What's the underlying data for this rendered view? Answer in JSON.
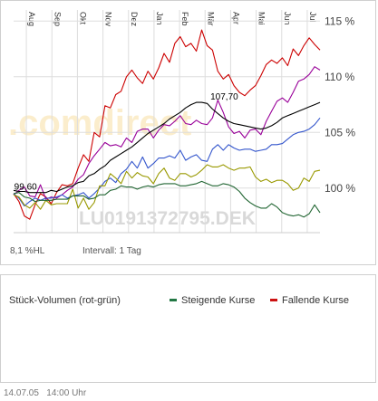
{
  "chart_data": {
    "type": "line",
    "isin_watermark": "LU0191372795.DEK",
    "brand_watermark": ".comdirect",
    "months": [
      "Aug",
      "Sep",
      "Okt",
      "Nov",
      "Dez",
      "Jan",
      "Feb",
      "Mär",
      "Apr",
      "Mai",
      "Jun",
      "Jul"
    ],
    "y_ticks": [
      "115 %",
      "110 %",
      "105 %",
      "100 %"
    ],
    "y_tick_values": [
      115,
      110,
      105,
      100
    ],
    "ylim": [
      96,
      116
    ],
    "hl_label": "8,1 %HL",
    "interval_label": "Intervall: 1 Tag",
    "annotations": [
      {
        "text": "107,70",
        "x": 8.2,
        "y": 107.7
      },
      {
        "text": "99,60",
        "x": 0.9,
        "y": 99.6
      }
    ],
    "series": [
      {
        "color": "#cc0000",
        "x": [
          0,
          0.2,
          0.4,
          0.6,
          0.8,
          1,
          1.2,
          1.4,
          1.6,
          1.8,
          2,
          2.2,
          2.4,
          2.6,
          2.8,
          3,
          3.2,
          3.4,
          3.6,
          3.8,
          4,
          4.2,
          4.4,
          4.6,
          4.8,
          5,
          5.2,
          5.4,
          5.6,
          5.8,
          6,
          6.2,
          6.4,
          6.6,
          6.8,
          7,
          7.2,
          7.4,
          7.6,
          7.8,
          8,
          8.2,
          8.4,
          8.6,
          8.8,
          9,
          9.2,
          9.4,
          9.6,
          9.8,
          10,
          10.2,
          10.4,
          10.6,
          10.8,
          11,
          11.2,
          11.4
        ],
        "values": [
          99.5,
          98.8,
          97.5,
          97.2,
          98.5,
          99.5,
          99.2,
          98.6,
          99.6,
          100.3,
          100.2,
          100.4,
          101.8,
          103,
          102.4,
          105,
          104.6,
          107.4,
          107.2,
          108.4,
          108.7,
          110,
          110.6,
          109.9,
          109.4,
          110.5,
          109.8,
          110.8,
          112.1,
          111.3,
          113,
          113.6,
          112.7,
          113,
          112.3,
          114.2,
          112.8,
          112.4,
          110.5,
          109.8,
          110.2,
          109.2,
          108.6,
          108.3,
          108.8,
          109.2,
          110.1,
          111.1,
          111.5,
          111.2,
          111.7,
          111,
          112.5,
          111.9,
          112.8,
          113.5,
          112.9,
          112.4
        ]
      },
      {
        "color": "#990099",
        "x": [
          0,
          0.2,
          0.4,
          0.6,
          0.8,
          1,
          1.2,
          1.4,
          1.6,
          1.8,
          2,
          2.2,
          2.4,
          2.6,
          2.8,
          3,
          3.2,
          3.4,
          3.6,
          3.8,
          4,
          4.2,
          4.4,
          4.6,
          4.8,
          5,
          5.2,
          5.4,
          5.6,
          5.8,
          6,
          6.2,
          6.4,
          6.6,
          6.8,
          7,
          7.2,
          7.4,
          7.6,
          7.8,
          8,
          8.2,
          8.4,
          8.6,
          8.8,
          9,
          9.2,
          9.4,
          9.6,
          9.8,
          10,
          10.2,
          10.4,
          10.6,
          10.8,
          11,
          11.2,
          11.4
        ],
        "values": [
          99.4,
          99.8,
          100.1,
          99.3,
          99.2,
          100.3,
          99,
          99.2,
          99.1,
          99.4,
          99.8,
          100.1,
          100.8,
          101.2,
          102.2,
          102.9,
          103.5,
          104.1,
          103.8,
          103.9,
          103.7,
          104.5,
          104.1,
          105.1,
          105.3,
          105.3,
          104.5,
          105.2,
          105.7,
          105.6,
          106,
          106.5,
          105.8,
          105.7,
          106.1,
          105.8,
          105.7,
          106.3,
          107.9,
          106.8,
          105.5,
          104.9,
          105.1,
          104.5,
          105.2,
          105.3,
          104.8,
          106,
          106.9,
          107.8,
          108.1,
          107.7,
          108.6,
          109.6,
          109.8,
          110.2,
          110.9,
          110.6
        ]
      },
      {
        "color": "#000000",
        "x": [
          0,
          0.2,
          0.4,
          0.6,
          0.8,
          1,
          1.2,
          1.4,
          1.6,
          1.8,
          2,
          2.2,
          2.4,
          2.6,
          2.8,
          3,
          3.2,
          3.4,
          3.6,
          3.8,
          4,
          4.2,
          4.4,
          4.6,
          4.8,
          5,
          5.2,
          5.4,
          5.6,
          5.8,
          6,
          6.2,
          6.4,
          6.6,
          6.8,
          7,
          7.2,
          7.4,
          7.6,
          7.8,
          8,
          8.2,
          8.4,
          8.6,
          8.8,
          9,
          9.2,
          9.4,
          9.6,
          9.8,
          10,
          10.2,
          10.4,
          10.6,
          10.8,
          11,
          11.2,
          11.4
        ],
        "values": [
          99.8,
          99.7,
          99.7,
          99.6,
          99.6,
          99.6,
          99.6,
          99.8,
          99.7,
          99.9,
          100.1,
          100.2,
          100.5,
          100.6,
          101.1,
          101.3,
          101.7,
          102,
          102.5,
          102.8,
          103.1,
          103.4,
          103.7,
          104.1,
          104.5,
          104.9,
          105.2,
          105.5,
          105.8,
          106.2,
          106.5,
          106.8,
          107.2,
          107.5,
          107.7,
          107.7,
          107.6,
          107.1,
          106.7,
          106.3,
          106,
          105.8,
          105.7,
          105.6,
          105.5,
          105.4,
          105.3,
          105.4,
          105.6,
          105.9,
          106.3,
          106.5,
          106.7,
          106.9,
          107.1,
          107.3,
          107.5,
          107.7
        ]
      },
      {
        "color": "#3355cc",
        "x": [
          0,
          0.2,
          0.4,
          0.6,
          0.8,
          1,
          1.2,
          1.4,
          1.6,
          1.8,
          2,
          2.2,
          2.4,
          2.6,
          2.8,
          3,
          3.2,
          3.4,
          3.6,
          3.8,
          4,
          4.2,
          4.4,
          4.6,
          4.8,
          5,
          5.2,
          5.4,
          5.6,
          5.8,
          6,
          6.2,
          6.4,
          6.6,
          6.8,
          7,
          7.2,
          7.4,
          7.6,
          7.8,
          8,
          8.2,
          8.4,
          8.6,
          8.8,
          9,
          9.2,
          9.4,
          9.6,
          9.8,
          10,
          10.2,
          10.4,
          10.6,
          10.8,
          11,
          11.2,
          11.4
        ],
        "values": [
          99.5,
          99.1,
          98.4,
          98.8,
          99.1,
          98.9,
          99.1,
          99.1,
          99.2,
          99.4,
          99.1,
          99.3,
          99.4,
          99.6,
          99.1,
          99.5,
          100,
          100.6,
          100.9,
          100.5,
          101.3,
          101.7,
          102.4,
          101.8,
          102.8,
          101.8,
          102.2,
          102.7,
          102.7,
          102.9,
          102.7,
          103.4,
          102.5,
          102.8,
          103,
          102.5,
          102.4,
          103.5,
          103.9,
          103.4,
          103.9,
          103.6,
          103.4,
          103.5,
          103.5,
          103.3,
          103.4,
          103.5,
          103.9,
          103.9,
          104,
          104.4,
          104.8,
          105,
          105.1,
          105.3,
          105.7,
          106.3
        ]
      },
      {
        "color": "#999900",
        "x": [
          0,
          0.2,
          0.4,
          0.6,
          0.8,
          1,
          1.2,
          1.4,
          1.6,
          1.8,
          2,
          2.2,
          2.4,
          2.6,
          2.8,
          3,
          3.2,
          3.4,
          3.6,
          3.8,
          4,
          4.2,
          4.4,
          4.6,
          4.8,
          5,
          5.2,
          5.4,
          5.6,
          5.8,
          6,
          6.2,
          6.4,
          6.6,
          6.8,
          7,
          7.2,
          7.4,
          7.6,
          7.8,
          8,
          8.2,
          8.4,
          8.6,
          8.8,
          9,
          9.2,
          9.4,
          9.6,
          9.8,
          10,
          10.2,
          10.4,
          10.6,
          10.8,
          11,
          11.2,
          11.4
        ],
        "values": [
          99.4,
          99.2,
          98.5,
          98.2,
          98.7,
          98.1,
          98.9,
          98.5,
          98.6,
          98.6,
          98.6,
          99.9,
          98.2,
          99.1,
          98.1,
          98.7,
          100.2,
          100.2,
          101.3,
          100.9,
          100.4,
          101.5,
          100.9,
          101.4,
          101.1,
          101,
          100.4,
          101.3,
          101.8,
          100.9,
          100.7,
          101.3,
          101.3,
          101,
          101.2,
          101.6,
          102.1,
          101.9,
          101.9,
          102.1,
          101.8,
          101.6,
          101.8,
          101.8,
          101.9,
          101,
          100.6,
          100.8,
          100.5,
          100.7,
          100.7,
          100.4,
          99.8,
          100,
          100.9,
          100.6,
          101.5,
          101.6
        ]
      },
      {
        "color": "#226633",
        "x": [
          0,
          0.2,
          0.4,
          0.6,
          0.8,
          1,
          1.2,
          1.4,
          1.6,
          1.8,
          2,
          2.2,
          2.4,
          2.6,
          2.8,
          3,
          3.2,
          3.4,
          3.6,
          3.8,
          4,
          4.2,
          4.4,
          4.6,
          4.8,
          5,
          5.2,
          5.4,
          5.6,
          5.8,
          6,
          6.2,
          6.4,
          6.6,
          6.8,
          7,
          7.2,
          7.4,
          7.6,
          7.8,
          8,
          8.2,
          8.4,
          8.6,
          8.8,
          9,
          9.2,
          9.4,
          9.6,
          9.8,
          10,
          10.2,
          10.4,
          10.6,
          10.8,
          11,
          11.2,
          11.4
        ],
        "values": [
          99.5,
          99.6,
          99.2,
          99.1,
          98.8,
          98.9,
          98.9,
          98.9,
          99,
          99,
          99,
          99.3,
          99.3,
          99.3,
          99,
          99.1,
          99.4,
          99.4,
          99.8,
          99.9,
          100.2,
          100.1,
          100.1,
          99.9,
          100.1,
          100.2,
          100.1,
          100.3,
          100.4,
          100.4,
          100.4,
          100.2,
          100.2,
          100.3,
          100.4,
          100.6,
          100.4,
          100.2,
          100.2,
          100.4,
          100.3,
          100.1,
          99.7,
          99.1,
          98.7,
          98.4,
          98.2,
          98.2,
          98.6,
          98.3,
          97.8,
          97.6,
          97.5,
          97.6,
          97.4,
          97.7,
          98.5,
          97.8
        ]
      }
    ]
  },
  "volume": {
    "label": "Stück-Volumen (rot-grün)",
    "legend": [
      {
        "label": "Steigende Kurse",
        "color": "#227744"
      },
      {
        "label": "Fallende Kurse",
        "color": "#cc1111"
      }
    ]
  },
  "footer": {
    "date": "14.07.05",
    "time": "14:00 Uhr"
  }
}
